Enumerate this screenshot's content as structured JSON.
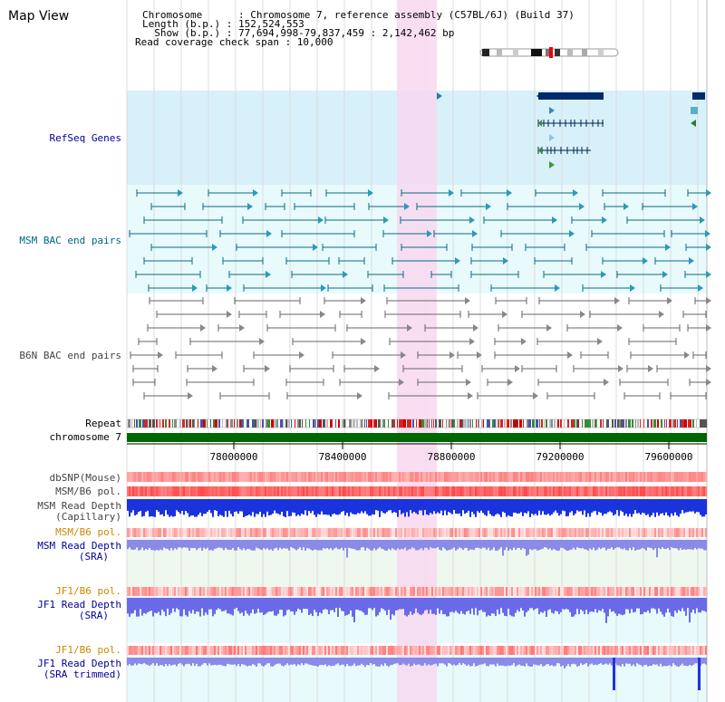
{
  "header": {
    "title": "Map View",
    "chromosome_line": "Chromosome      : Chromosome 7, reference assembly (C57BL/6J) (Build 37)",
    "length_line": "Length (b.p.) : 152,524,553",
    "show_line": "  Show (b.p.) : 77,694,998-79,837,459 : 2,142,462 bp",
    "coverage_line": "Read coverage check span : 10,000"
  },
  "tracks": {
    "refseq": "RefSeq Genes",
    "msm_bac": "MSM BAC end pairs",
    "b6n_bac": "B6N BAC end pairs",
    "repeat": "Repeat",
    "chromosome": "chromosome 7",
    "dbsnp": "dbSNP(Mouse)",
    "msm_b6_pol_1": "MSM/B6 pol.",
    "msm_depth_cap_1": "MSM Read Depth",
    "msm_depth_cap_2": "(Capillary)",
    "msm_b6_pol_2": "MSM/B6 pol.",
    "msm_depth_sra_1": "MSM Read Depth",
    "msm_depth_sra_2": "(SRA)",
    "jf1_b6_pol_1": "JF1/B6 pol.",
    "jf1_depth_sra_1": "JF1 Read Depth",
    "jf1_depth_sra_2": "(SRA)",
    "jf1_b6_pol_2": "JF1/B6 pol.",
    "jf1_depth_trim_1": "JF1 Read Depth",
    "jf1_depth_trim_2": "(SRA trimmed)"
  },
  "axis": {
    "ticks": [
      "78000000",
      "78400000",
      "78800000",
      "79200000",
      "79600000"
    ]
  },
  "colors": {
    "refseq_label": "#000099",
    "msm_bac_label": "#006680",
    "b6n_bac_label": "#444444",
    "orange_label": "#cc8800",
    "blue_label": "#000099",
    "chromosome_bar": "#006600",
    "highlight": "#f8d8f0"
  }
}
